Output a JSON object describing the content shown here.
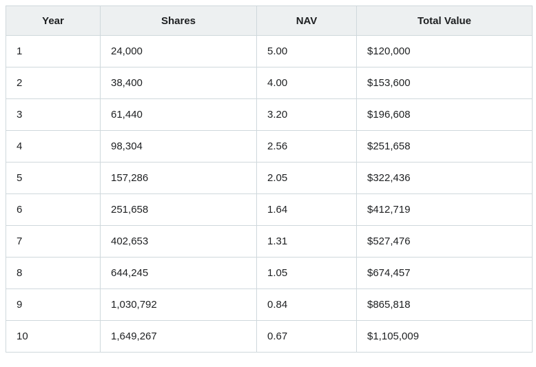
{
  "chart_data": {
    "type": "table",
    "columns": [
      "Year",
      "Shares",
      "NAV",
      "Total Value"
    ],
    "rows": [
      [
        "1",
        "24,000",
        "5.00",
        "$120,000"
      ],
      [
        "2",
        "38,400",
        "4.00",
        "$153,600"
      ],
      [
        "3",
        "61,440",
        "3.20",
        "$196,608"
      ],
      [
        "4",
        "98,304",
        "2.56",
        "$251,658"
      ],
      [
        "5",
        "157,286",
        "2.05",
        "$322,436"
      ],
      [
        "6",
        "251,658",
        "1.64",
        "$412,719"
      ],
      [
        "7",
        "402,653",
        "1.31",
        "$527,476"
      ],
      [
        "8",
        "644,245",
        "1.05",
        "$674,457"
      ],
      [
        "9",
        "1,030,792",
        "0.84",
        "$865,818"
      ],
      [
        "10",
        "1,649,267",
        "0.67",
        "$1,105,009"
      ]
    ]
  },
  "colors": {
    "header_background": "#edf0f1",
    "grid_border": "#cfd8dc",
    "text": "#1d1f21",
    "row_background": "#ffffff"
  }
}
